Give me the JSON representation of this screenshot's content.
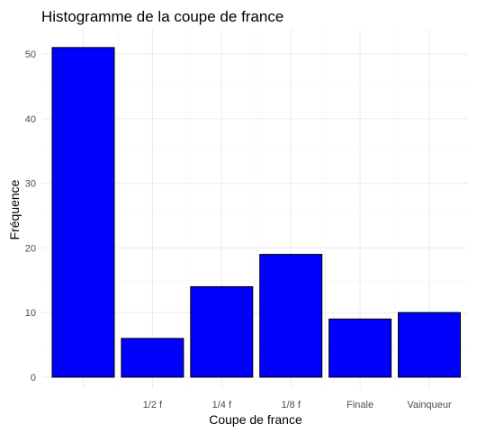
{
  "chart_data": {
    "type": "bar",
    "title": "Histogramme de la coupe de france",
    "xlabel": "Coupe de france",
    "ylabel": "Fréquence",
    "categories": [
      "",
      "1/2 f",
      "1/4 f",
      "1/8 f",
      "Finale",
      "Vainqueur"
    ],
    "values": [
      51,
      6,
      14,
      19,
      9,
      10
    ],
    "ylim": [
      0,
      53.5
    ],
    "yticks": [
      0,
      10,
      20,
      30,
      40,
      50
    ],
    "grid": true,
    "bar_color": "#0000ff",
    "bar_border_color": "#000000",
    "background": "#ffffff"
  }
}
